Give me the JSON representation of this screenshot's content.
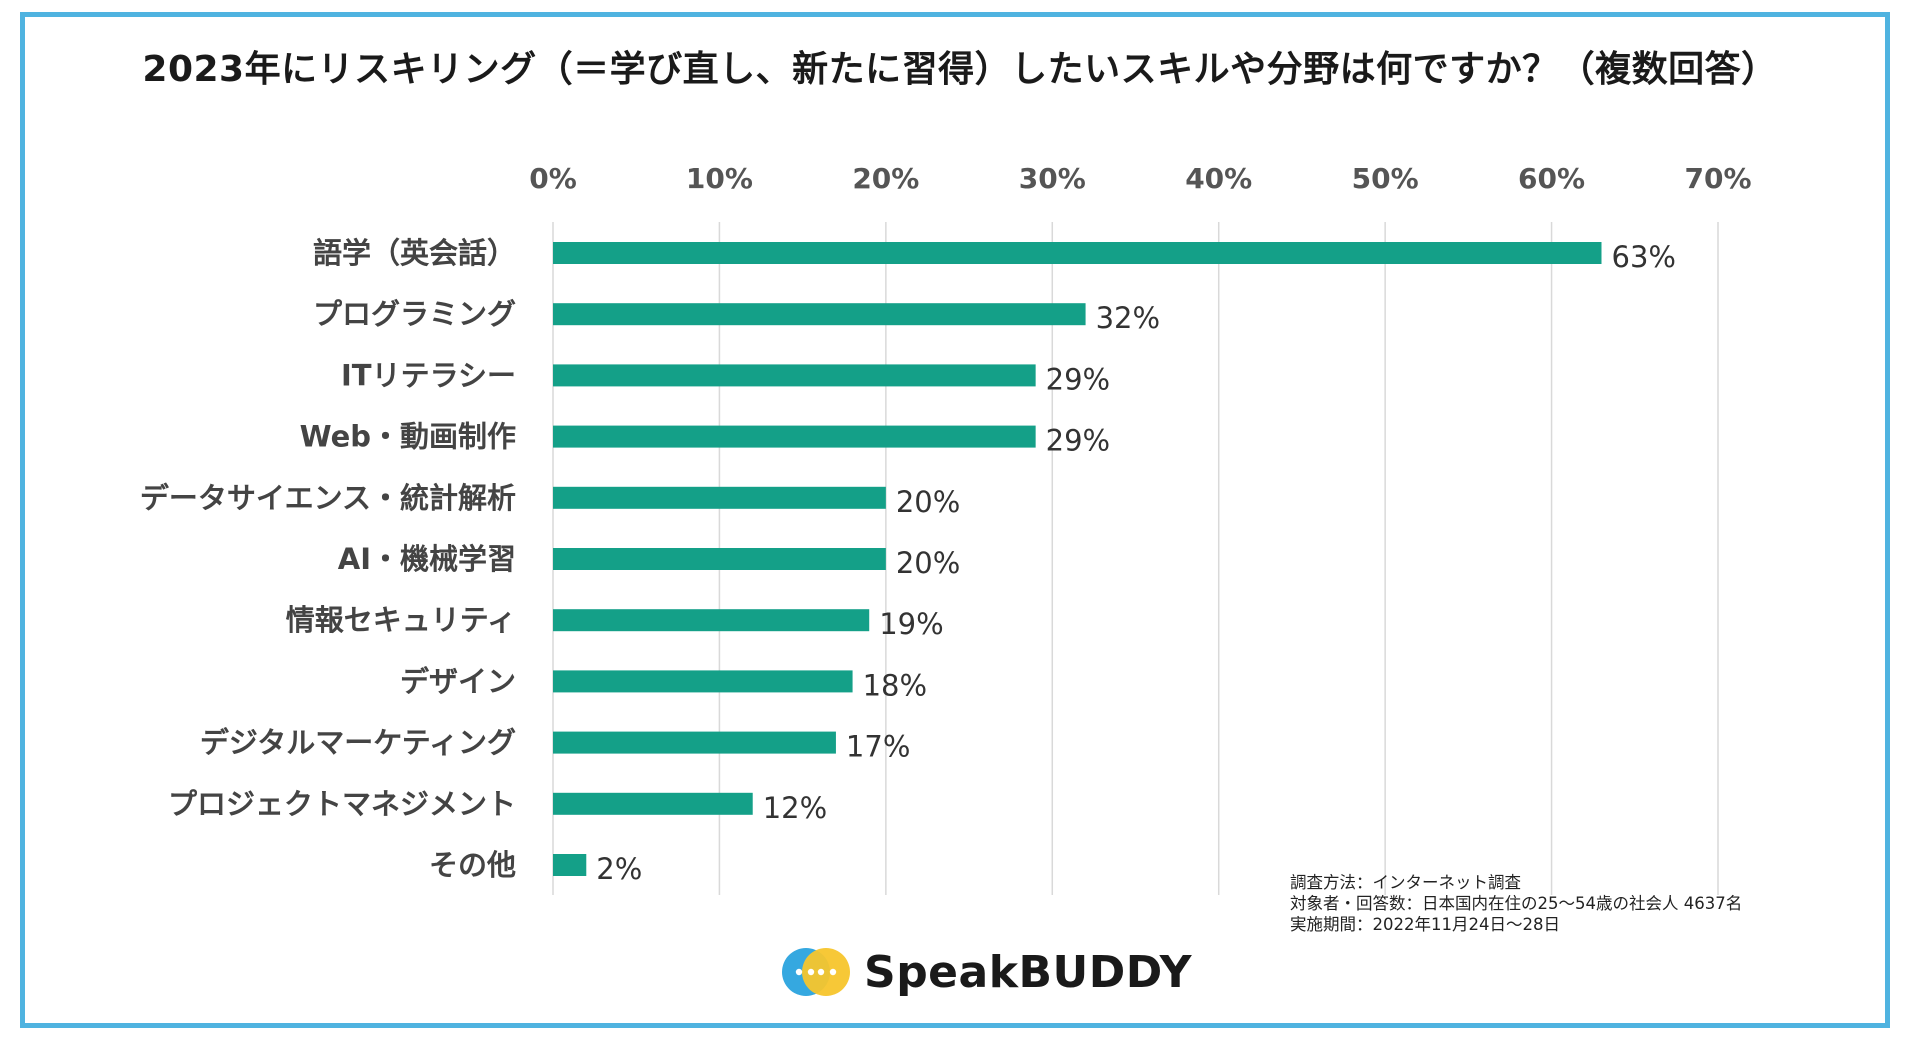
{
  "chart_data": {
    "type": "bar",
    "orientation": "horizontal",
    "title": "2023年にリスキリング（＝学び直し、新たに習得）したいスキルや分野は何ですか？（複数回答）",
    "categories": [
      "語学（英会話）",
      "プログラミング",
      "ITリテラシー",
      "Web・動画制作",
      "データサイエンス・統計解析",
      "AI・機械学習",
      "情報セキュリティ",
      "デザイン",
      "デジタルマーケティング",
      "プロジェクトマネジメント",
      "その他"
    ],
    "values": [
      63,
      32,
      29,
      29,
      20,
      20,
      19,
      18,
      17,
      12,
      2
    ],
    "value_labels": [
      "63%",
      "32%",
      "29%",
      "29%",
      "20%",
      "20%",
      "19%",
      "18%",
      "17%",
      "12%",
      "2%"
    ],
    "xticks": [
      0,
      10,
      20,
      30,
      40,
      50,
      60,
      70
    ],
    "xtick_labels": [
      "0%",
      "10%",
      "20%",
      "30%",
      "40%",
      "50%",
      "60%",
      "70%"
    ],
    "xlim": [
      0,
      70
    ],
    "xlabel": "",
    "ylabel": "",
    "grid": true,
    "legend": "none",
    "bar_color": "#14a088",
    "grid_color": "#d9d9d9"
  },
  "notes": {
    "method": "調査方法：インターネット調査",
    "respondents": "対象者・回答数：日本国内在住の25〜54歳の社会人 4637名",
    "period": "実施期間：2022年11月24日〜28日"
  },
  "brand": {
    "name": "SpeakBUDDY",
    "logo_icon": "speakbuddy-logo-icon",
    "colors": {
      "blue": "#35a8e0",
      "yellow": "#f7c52c",
      "frame": "#4fb3e0"
    }
  }
}
